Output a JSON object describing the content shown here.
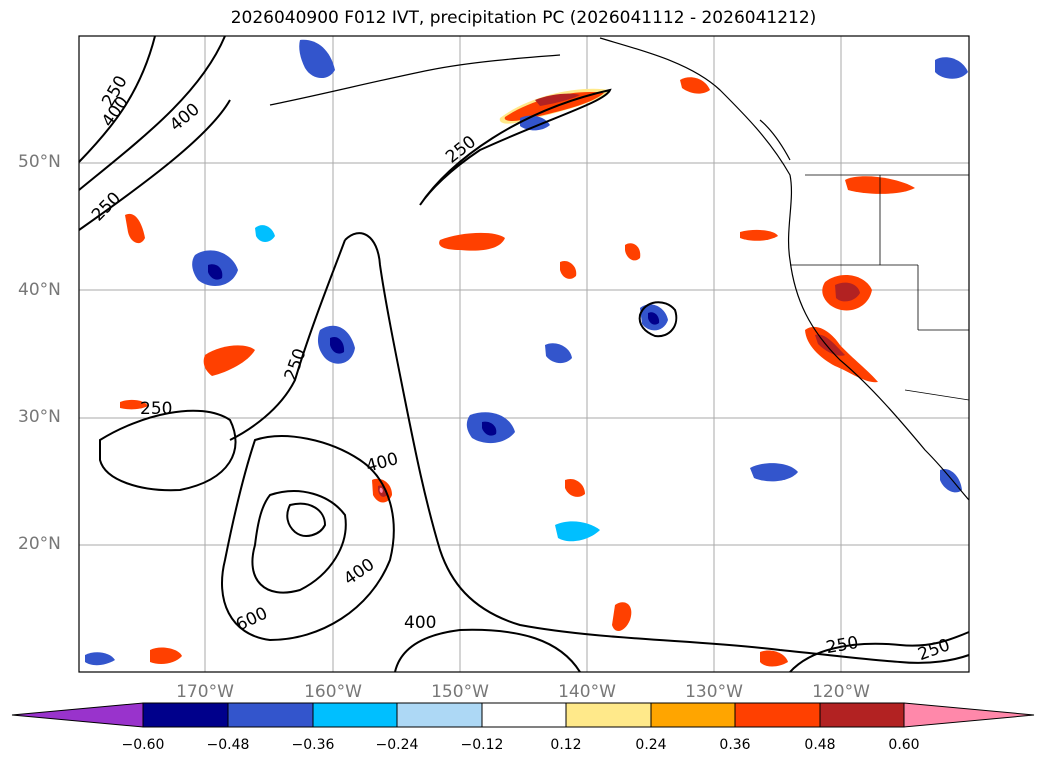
{
  "title": "2026040900 F012 IVT, precipitation PC (2026041112 - 2026041212)",
  "lat_labels": [
    "50°N",
    "40°N",
    "30°N",
    "20°N"
  ],
  "lon_labels": [
    "170°W",
    "160°W",
    "150°W",
    "140°W",
    "130°W",
    "120°W"
  ],
  "contour_labels": [
    {
      "id": "c250-nw",
      "text": "250"
    },
    {
      "id": "c400-nw",
      "text": "400"
    },
    {
      "id": "c400-nw2",
      "text": "400"
    },
    {
      "id": "c250-nw2",
      "text": "250"
    },
    {
      "id": "c250-north",
      "text": "250"
    },
    {
      "id": "c250-mid",
      "text": "250"
    },
    {
      "id": "c250-west",
      "text": "250"
    },
    {
      "id": "c400-center",
      "text": "400"
    },
    {
      "id": "c400-south",
      "text": "400"
    },
    {
      "id": "c600",
      "text": "600"
    },
    {
      "id": "c400-bottom",
      "text": "400"
    },
    {
      "id": "c250-se1",
      "text": "250"
    },
    {
      "id": "c250-se2",
      "text": "250"
    }
  ],
  "colorbar": {
    "ticks": [
      "−0.60",
      "−0.48",
      "−0.36",
      "−0.24",
      "−0.12",
      "0.12",
      "0.24",
      "0.36",
      "0.48",
      "0.60"
    ],
    "colors": [
      "#9933cc",
      "#00008b",
      "#3355cc",
      "#00bfff",
      "#add8f5",
      "#ffffff",
      "#ffe98a",
      "#ffa500",
      "#ff4000",
      "#b22222",
      "#ff88aa"
    ]
  },
  "map": {
    "land_color": "#ffffff",
    "grid_color": "#aaaaaa",
    "positive_colors": [
      "#ffe98a",
      "#ffa500",
      "#ff4000",
      "#b22222",
      "#ff88aa"
    ],
    "negative_colors": [
      "#add8f5",
      "#00bfff",
      "#3355cc",
      "#00008b"
    ]
  }
}
